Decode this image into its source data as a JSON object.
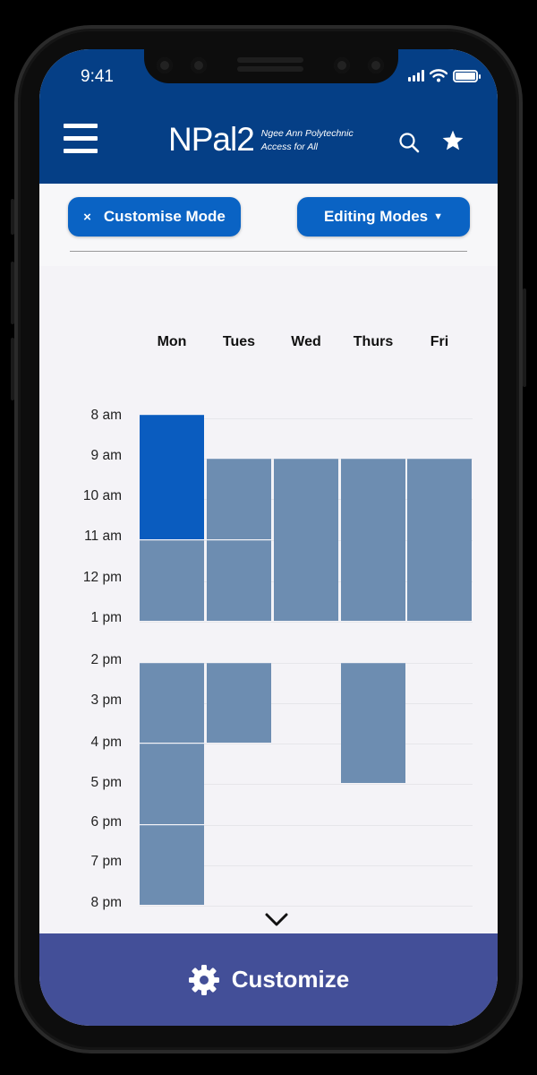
{
  "status_bar": {
    "time": "9:41"
  },
  "header": {
    "logo_main": "NPal2",
    "logo_line1": "Ngee Ann Polytechnic",
    "logo_line2": "Access for All",
    "menu_icon": "hamburger-icon",
    "search_icon": "search-icon",
    "favorite_icon": "star-icon",
    "bar_color": "#053f86"
  },
  "toolbar": {
    "customise_mode_label": "Customise Mode",
    "customise_mode_close": "×",
    "editing_modes_label": "Editing Modes",
    "editing_modes_caret": "▼",
    "button_color": "#0a63c4"
  },
  "timetable": {
    "days": [
      "Mon",
      "Tues",
      "Wed",
      "Thurs",
      "Fri"
    ],
    "times": [
      "8 am",
      "9 am",
      "10 am",
      "11 am",
      "12 pm",
      "1 pm",
      "2 pm",
      "3 pm",
      "4 pm",
      "5 pm",
      "6 pm",
      "7 pm",
      "8 pm"
    ],
    "block_color": "#6d8db1",
    "selected_block_color": "#0a5cbf",
    "blocks": [
      {
        "day": "Mon",
        "start": "8 am",
        "end": "11 am",
        "selected": true
      },
      {
        "day": "Mon",
        "start": "11 am",
        "end": "1 pm",
        "selected": false
      },
      {
        "day": "Mon",
        "start": "2 pm",
        "end": "4 pm",
        "selected": false
      },
      {
        "day": "Mon",
        "start": "4 pm",
        "end": "6 pm",
        "selected": false
      },
      {
        "day": "Mon",
        "start": "6 pm",
        "end": "8 pm",
        "selected": false
      },
      {
        "day": "Tues",
        "start": "9 am",
        "end": "11 am",
        "selected": false
      },
      {
        "day": "Tues",
        "start": "11 am",
        "end": "1 pm",
        "selected": false
      },
      {
        "day": "Tues",
        "start": "2 pm",
        "end": "4 pm",
        "selected": false
      },
      {
        "day": "Wed",
        "start": "9 am",
        "end": "1 pm",
        "selected": false
      },
      {
        "day": "Thurs",
        "start": "9 am",
        "end": "1 pm",
        "selected": false
      },
      {
        "day": "Thurs",
        "start": "2 pm",
        "end": "5 pm",
        "selected": false
      },
      {
        "day": "Fri",
        "start": "9 am",
        "end": "1 pm",
        "selected": false
      }
    ],
    "scroll_icon": "chevron-down-icon"
  },
  "bottom_bar": {
    "label": "Customize",
    "icon": "gear-icon",
    "color": "#434f98"
  }
}
